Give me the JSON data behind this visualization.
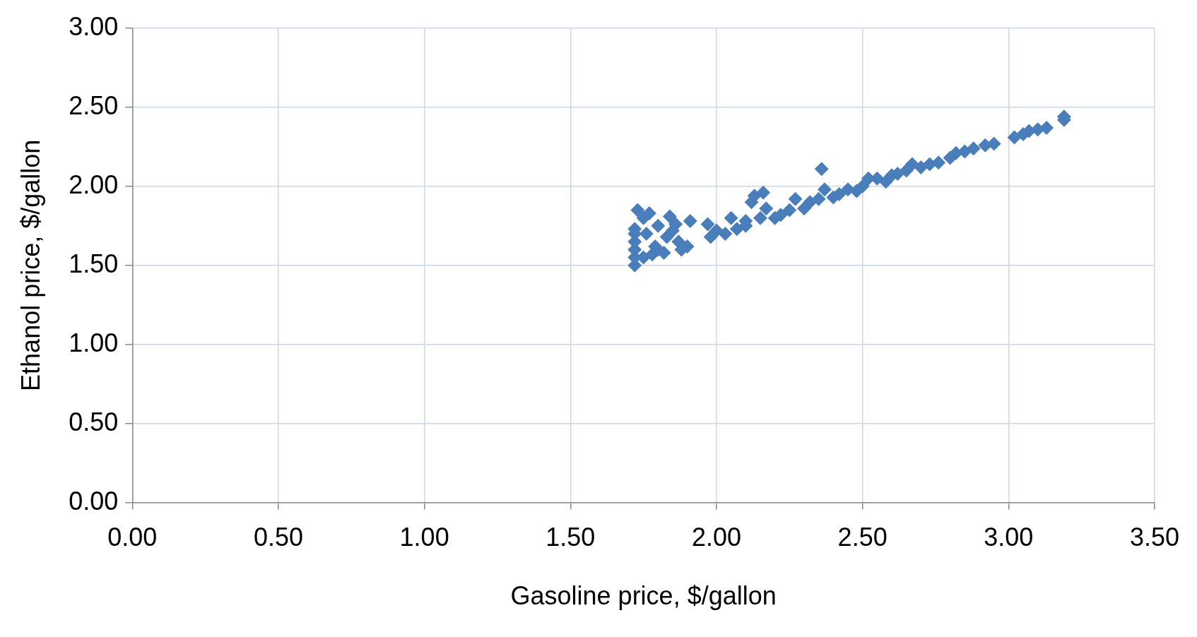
{
  "chart_data": {
    "type": "scatter",
    "xlabel": "Gasoline price, $/gallon",
    "ylabel": "Ethanol price, $/gallon",
    "marker": "diamond",
    "grid": true,
    "legend": false,
    "xlim": [
      0,
      3.5
    ],
    "ylim": [
      0,
      3
    ],
    "xticks": [
      {
        "value": 0,
        "label": "0.00"
      },
      {
        "value": 0.5,
        "label": "0.50"
      },
      {
        "value": 1,
        "label": "1.00"
      },
      {
        "value": 1.5,
        "label": "1.50"
      },
      {
        "value": 2,
        "label": "2.00"
      },
      {
        "value": 2.5,
        "label": "2.50"
      },
      {
        "value": 3,
        "label": "3.00"
      },
      {
        "value": 3.5,
        "label": "3.50"
      }
    ],
    "yticks": [
      {
        "value": 0,
        "label": "0.00"
      },
      {
        "value": 0.5,
        "label": "0.50"
      },
      {
        "value": 1,
        "label": "1.00"
      },
      {
        "value": 1.5,
        "label": "1.50"
      },
      {
        "value": 2,
        "label": "2.00"
      },
      {
        "value": 2.5,
        "label": "2.50"
      },
      {
        "value": 3,
        "label": "3.00"
      }
    ],
    "series": [
      {
        "color": "#4a7ebb",
        "x": [
          1.72,
          1.72,
          1.72,
          1.72,
          1.72,
          1.72,
          1.73,
          1.75,
          1.76,
          1.77,
          1.75,
          1.78,
          1.8,
          1.82,
          1.8,
          1.84,
          1.85,
          1.86,
          1.87,
          1.88,
          1.9,
          1.91,
          1.83,
          1.79,
          1.97,
          1.98,
          2.0,
          2.03,
          2.05,
          2.07,
          2.1,
          2.1,
          2.12,
          2.13,
          2.15,
          2.16,
          2.17,
          2.2,
          2.22,
          2.25,
          2.27,
          2.3,
          2.32,
          2.35,
          2.36,
          2.37,
          2.4,
          2.42,
          2.45,
          2.48,
          2.5,
          2.52,
          2.55,
          2.58,
          2.6,
          2.62,
          2.65,
          2.67,
          2.7,
          2.73,
          2.76,
          2.8,
          2.82,
          2.85,
          2.88,
          2.92,
          2.95,
          3.02,
          3.05,
          3.07,
          3.1,
          3.13,
          3.19,
          3.19
        ],
        "values": [
          1.5,
          1.55,
          1.6,
          1.65,
          1.7,
          1.73,
          1.85,
          1.8,
          1.7,
          1.83,
          1.55,
          1.57,
          1.6,
          1.58,
          1.75,
          1.81,
          1.72,
          1.76,
          1.65,
          1.6,
          1.62,
          1.78,
          1.68,
          1.62,
          1.76,
          1.68,
          1.72,
          1.7,
          1.8,
          1.73,
          1.78,
          1.75,
          1.9,
          1.94,
          1.8,
          1.96,
          1.86,
          1.8,
          1.82,
          1.85,
          1.92,
          1.86,
          1.9,
          1.92,
          2.11,
          1.98,
          1.93,
          1.95,
          1.98,
          1.97,
          2.0,
          2.05,
          2.05,
          2.03,
          2.07,
          2.08,
          2.1,
          2.14,
          2.12,
          2.14,
          2.15,
          2.18,
          2.21,
          2.22,
          2.24,
          2.26,
          2.27,
          2.31,
          2.33,
          2.35,
          2.36,
          2.37,
          2.42,
          2.44
        ]
      }
    ]
  }
}
